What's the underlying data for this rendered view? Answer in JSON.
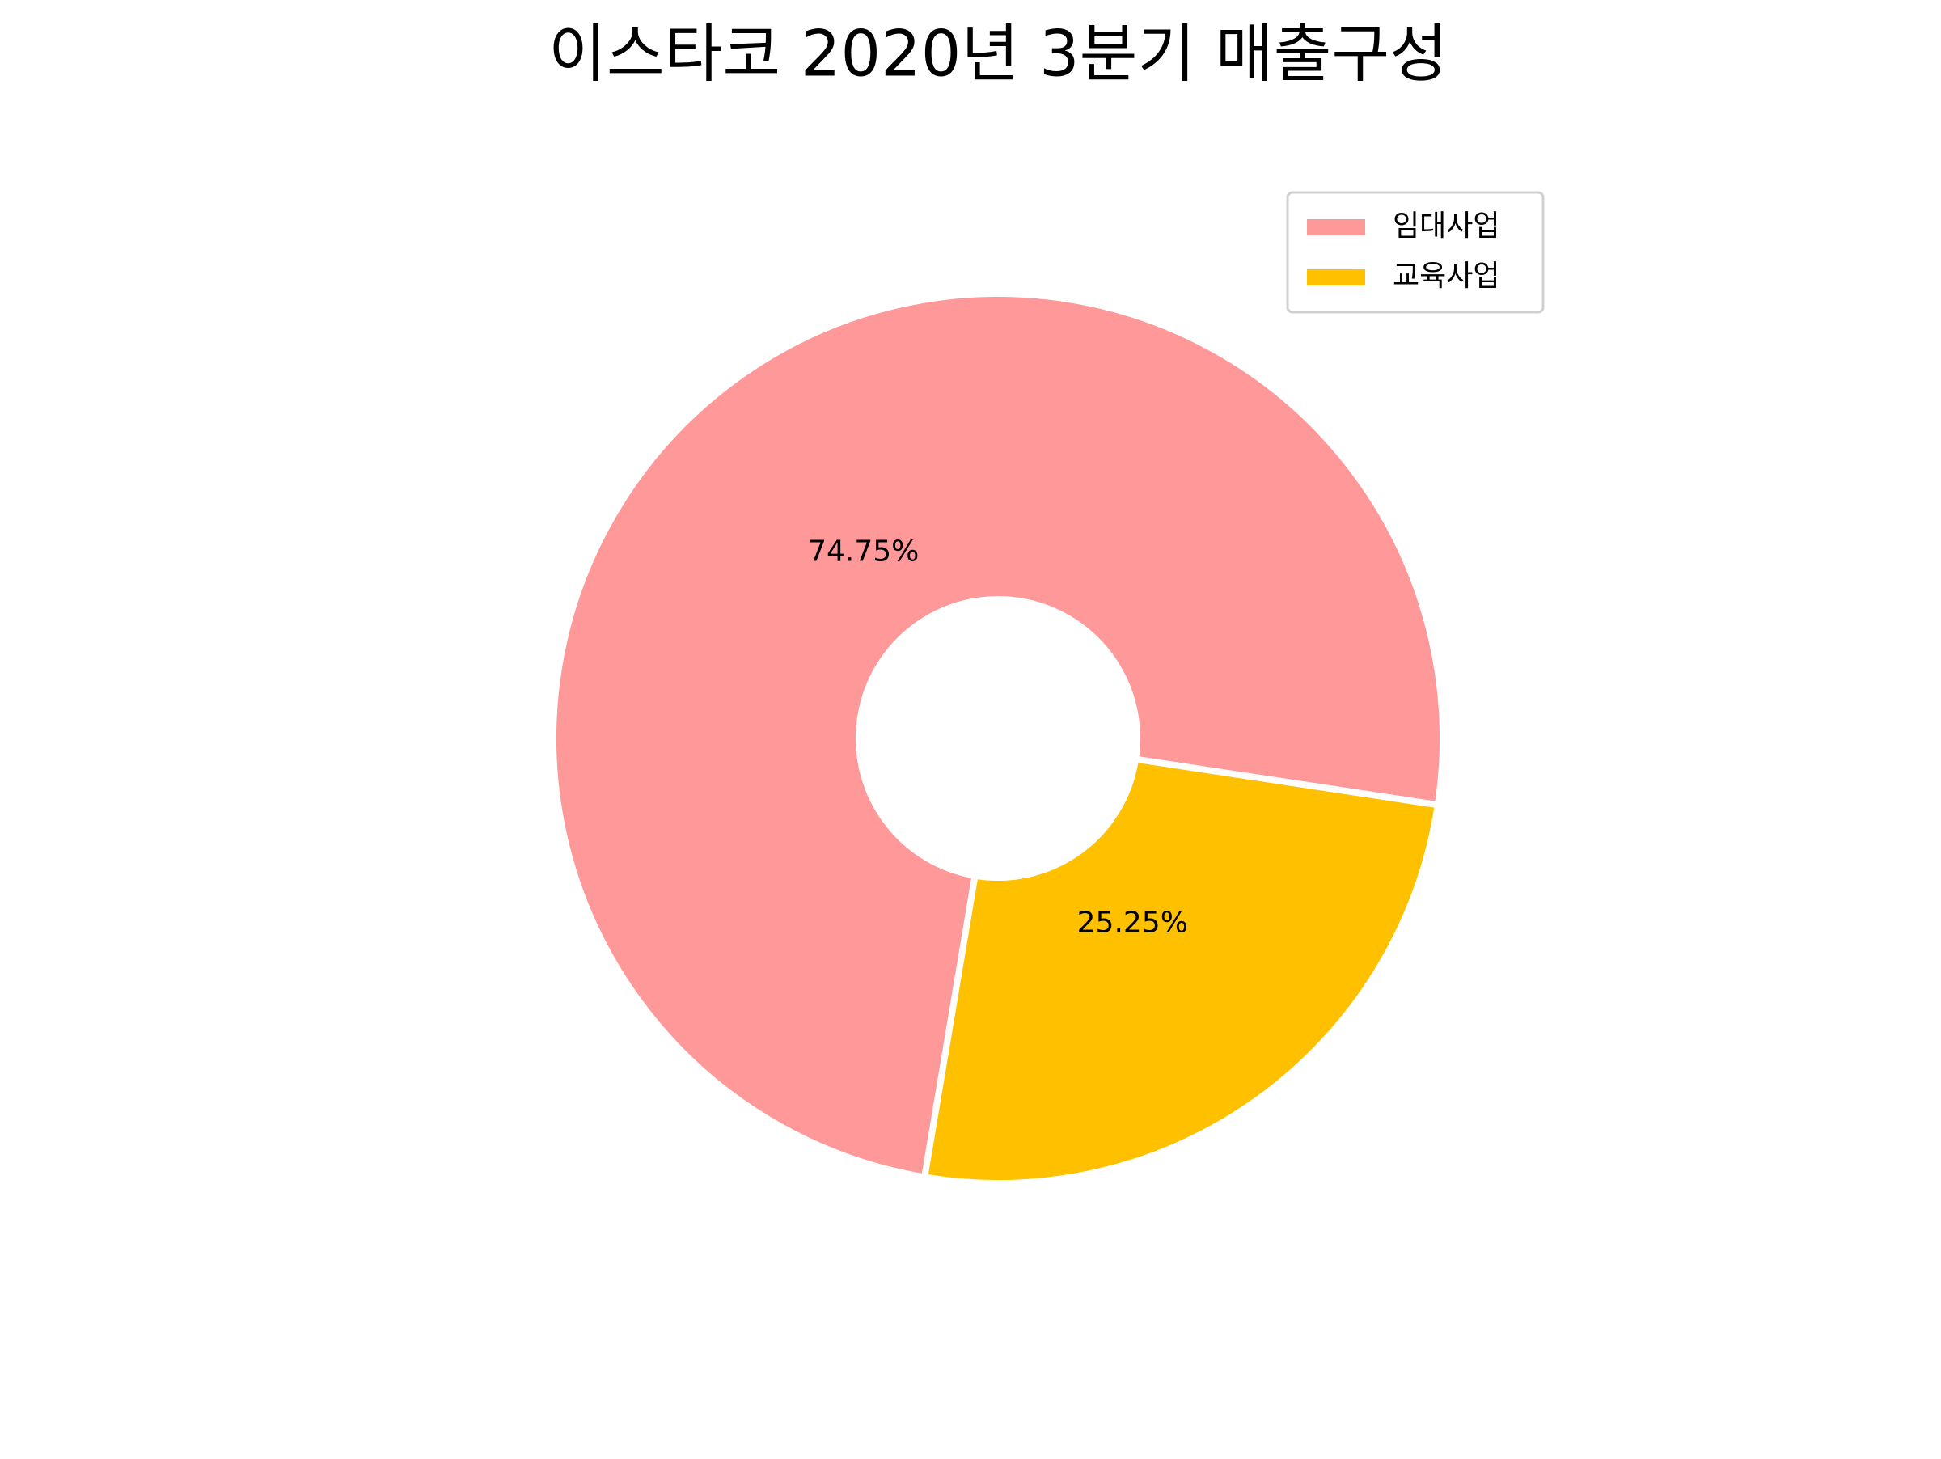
{
  "chart_data": {
    "type": "pie",
    "title": "이스타코 2020년 3분기 매출구성",
    "categories": [
      "임대사업",
      "교육사업"
    ],
    "values": [
      74.75,
      25.25
    ],
    "value_labels": [
      "74.75%",
      "25.25%"
    ],
    "colors": [
      "#ff9999",
      "#ffc000"
    ],
    "startangle": -8.6,
    "donut": true,
    "legend": "upper right"
  }
}
